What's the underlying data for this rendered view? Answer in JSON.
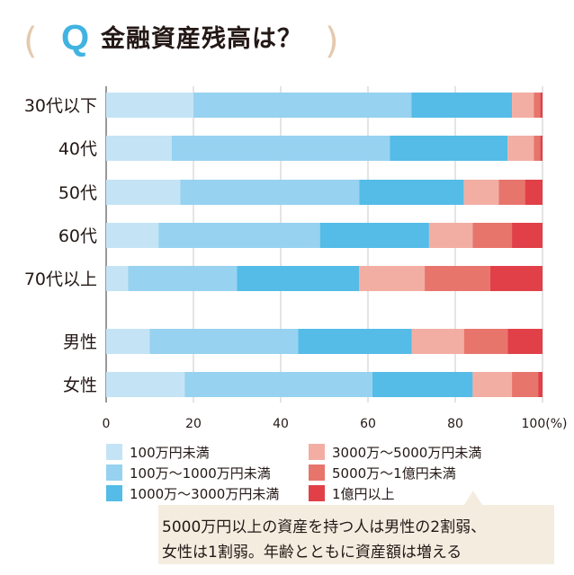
{
  "header": {
    "q_mark": "Q",
    "title": "金融資産残高は？",
    "bracket_left": "(",
    "bracket_right": ")"
  },
  "colors": {
    "accent_blue": "#41b3e1",
    "bracket_beige": "#e4c9ae",
    "callout_bg": "#f5ece0"
  },
  "chart_data": {
    "type": "bar",
    "orientation": "horizontal",
    "stacked": true,
    "unit_label": "100(%)",
    "xlim": [
      0,
      100
    ],
    "x_ticks": [
      "0",
      "20",
      "40",
      "60",
      "80"
    ],
    "grid": true,
    "categories": [
      "30代以下",
      "40代",
      "50代",
      "60代",
      "70代以上",
      "男性",
      "女性"
    ],
    "series": [
      {
        "name": "100万円未満",
        "color": "#c4e4f5",
        "values": [
          20,
          15,
          17,
          12,
          5,
          10,
          18
        ]
      },
      {
        "name": "100万～1000万円未満",
        "color": "#97d2f0",
        "values": [
          50,
          50,
          41,
          37,
          25,
          34,
          43
        ]
      },
      {
        "name": "1000万～3000万円未満",
        "color": "#54bce7",
        "values": [
          23,
          27,
          24,
          25,
          28,
          26,
          23
        ]
      },
      {
        "name": "3000万～5000万円未満",
        "color": "#f3aea3",
        "values": [
          5,
          6,
          8,
          10,
          15,
          12,
          9
        ]
      },
      {
        "name": "5000万～1億円未満",
        "color": "#e7756c",
        "values": [
          1.5,
          1.5,
          6,
          9,
          15,
          10,
          6
        ]
      },
      {
        "name": "1億円以上",
        "color": "#e14048",
        "values": [
          0.5,
          0.5,
          4,
          7,
          12,
          8,
          1
        ]
      }
    ]
  },
  "callout": {
    "line1": "5000万円以上の資産を持つ人は男性の2割弱、",
    "line2": "女性は1割弱。年齢とともに資産額は増える"
  }
}
